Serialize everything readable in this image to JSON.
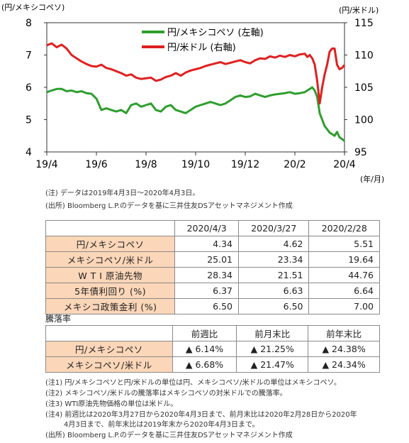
{
  "chart_data": {
    "type": "line",
    "left_axis_unit": "(円/メキシコペソ)",
    "right_axis_unit": "(円/米ドル)",
    "x_axis_unit": "(年/月)",
    "x_ticks": [
      "19/4",
      "19/6",
      "19/8",
      "19/10",
      "19/12",
      "20/2",
      "20/4"
    ],
    "left_ticks": [
      "8",
      "7",
      "6",
      "5",
      "4"
    ],
    "right_ticks": [
      "115",
      "110",
      "105",
      "100",
      "95"
    ],
    "left_range": [
      4,
      8
    ],
    "right_range": [
      95,
      115
    ],
    "legend": [
      "円/メキシコペソ (左軸)",
      "円/米ドル (右軸)"
    ],
    "series": [
      {
        "name": "円/メキシコペソ (左軸)",
        "axis": "left",
        "color": "#2e9e2e",
        "x": [
          0.0,
          0.2,
          0.4,
          0.6,
          0.8,
          1.0,
          1.2,
          1.4,
          1.6,
          1.8,
          2.0,
          2.2,
          2.4,
          2.6,
          2.8,
          3.0,
          3.2,
          3.4,
          3.6,
          3.8,
          4.0,
          4.2,
          4.4,
          4.6,
          4.8,
          5.0,
          5.2,
          5.4,
          5.6,
          5.8,
          6.0,
          6.2,
          6.4,
          6.6,
          6.8,
          7.0,
          7.2,
          7.4,
          7.6,
          7.8,
          8.0,
          8.2,
          8.4,
          8.6,
          8.8,
          9.0,
          9.2,
          9.4,
          9.6,
          9.8,
          10.0,
          10.2,
          10.4,
          10.5,
          10.6,
          10.7,
          10.8,
          10.9,
          11.0,
          11.1,
          11.2,
          11.3,
          11.4,
          11.5,
          11.6,
          11.7,
          11.8,
          11.9,
          12.0
        ],
        "y": [
          5.85,
          5.9,
          5.95,
          5.95,
          5.88,
          5.9,
          5.85,
          5.88,
          5.82,
          5.8,
          5.65,
          5.3,
          5.35,
          5.3,
          5.25,
          5.3,
          5.2,
          5.45,
          5.5,
          5.4,
          5.45,
          5.5,
          5.3,
          5.25,
          5.4,
          5.45,
          5.3,
          5.25,
          5.2,
          5.3,
          5.4,
          5.45,
          5.5,
          5.55,
          5.5,
          5.45,
          5.5,
          5.6,
          5.7,
          5.75,
          5.7,
          5.72,
          5.8,
          5.75,
          5.7,
          5.75,
          5.78,
          5.8,
          5.82,
          5.85,
          5.8,
          5.82,
          5.85,
          5.9,
          5.95,
          6.0,
          5.9,
          5.7,
          5.2,
          5.0,
          4.8,
          4.7,
          4.6,
          4.55,
          4.5,
          4.62,
          4.45,
          4.4,
          4.34
        ]
      },
      {
        "name": "円/米ドル (右軸)",
        "axis": "right",
        "color": "#e02020",
        "x": [
          0.0,
          0.2,
          0.4,
          0.6,
          0.8,
          1.0,
          1.2,
          1.4,
          1.6,
          1.8,
          2.0,
          2.2,
          2.4,
          2.6,
          2.8,
          3.0,
          3.2,
          3.4,
          3.6,
          3.8,
          4.0,
          4.2,
          4.4,
          4.6,
          4.8,
          5.0,
          5.2,
          5.4,
          5.6,
          5.8,
          6.0,
          6.2,
          6.4,
          6.6,
          6.8,
          7.0,
          7.2,
          7.4,
          7.6,
          7.8,
          8.0,
          8.2,
          8.4,
          8.6,
          8.8,
          9.0,
          9.2,
          9.4,
          9.6,
          9.8,
          10.0,
          10.2,
          10.4,
          10.5,
          10.6,
          10.7,
          10.8,
          10.9,
          11.0,
          11.1,
          11.2,
          11.3,
          11.4,
          11.5,
          11.6,
          11.7,
          11.8,
          11.9,
          12.0
        ],
        "y": [
          111.5,
          111.8,
          111.2,
          111.6,
          111.0,
          110.0,
          109.5,
          109.0,
          108.6,
          108.3,
          108.2,
          108.5,
          108.0,
          107.8,
          107.5,
          107.2,
          106.8,
          107.0,
          106.5,
          106.3,
          106.4,
          106.5,
          106.0,
          106.2,
          106.6,
          106.8,
          107.2,
          106.8,
          107.3,
          107.6,
          107.8,
          108.0,
          108.3,
          108.5,
          108.7,
          108.9,
          108.6,
          108.8,
          109.0,
          109.2,
          108.9,
          108.7,
          109.2,
          109.5,
          109.4,
          109.8,
          109.6,
          109.9,
          109.7,
          110.0,
          109.8,
          110.1,
          110.2,
          109.7,
          110.0,
          109.5,
          108.5,
          106.0,
          102.5,
          105.0,
          107.0,
          108.5,
          110.5,
          111.0,
          111.0,
          108.5,
          107.8,
          108.0,
          108.45
        ]
      }
    ]
  },
  "notes_top": [
    "(注) データは2019年4月3日～2020年4月3日。",
    "(出所) Bloomberg L.P.のデータを基に三井住友DSアセットマネジメント作成"
  ],
  "table1": {
    "headers": [
      "2020/4/3",
      "2020/3/27",
      "2020/2/28"
    ],
    "rows": [
      {
        "label": "円/メキシコペソ",
        "values": [
          "4.34",
          "4.62",
          "5.51"
        ]
      },
      {
        "label": "メキシコペソ/米ドル",
        "values": [
          "25.01",
          "23.34",
          "19.64"
        ]
      },
      {
        "label": "W T I 原油先物",
        "values": [
          "28.34",
          "21.51",
          "44.76"
        ]
      },
      {
        "label": "5年債利回り (%)",
        "values": [
          "6.37",
          "6.63",
          "6.64"
        ]
      },
      {
        "label": "メキシコ政策金利 (%)",
        "values": [
          "6.50",
          "6.50",
          "7.00"
        ]
      }
    ]
  },
  "table2": {
    "title": "騰落率",
    "headers": [
      "前週比",
      "前月末比",
      "前年末比"
    ],
    "rows": [
      {
        "label": "円/メキシコペソ",
        "values": [
          "▲ 6.14%",
          "▲ 21.25%",
          "▲ 24.38%"
        ]
      },
      {
        "label": "メキシコペソ/米ドル",
        "values": [
          "▲ 6.68%",
          "▲ 21.47%",
          "▲ 24.34%"
        ]
      }
    ]
  },
  "footnotes": [
    "(注1) 円/メキシコペソと円/米ドルの単位は円、メキシコペソ/米ドルの単位はメキシコペソ。",
    "(注2) メキシコペソ/米ドルの騰落率はメキシコペソの対米ドルでの騰落率。",
    "(注3) WTI原油先物価格の単位は米ドル。",
    "(注4) 前週比は2020年3月27日から2020年4月3日まで、前月末比は2020年2月28日から2020年",
    "4月3日まで、前年末比は2019年末から2020年4月3日まで。",
    "(出所) Bloomberg L.P.のデータを基に三井住友DSアセットマネジメント作成"
  ]
}
